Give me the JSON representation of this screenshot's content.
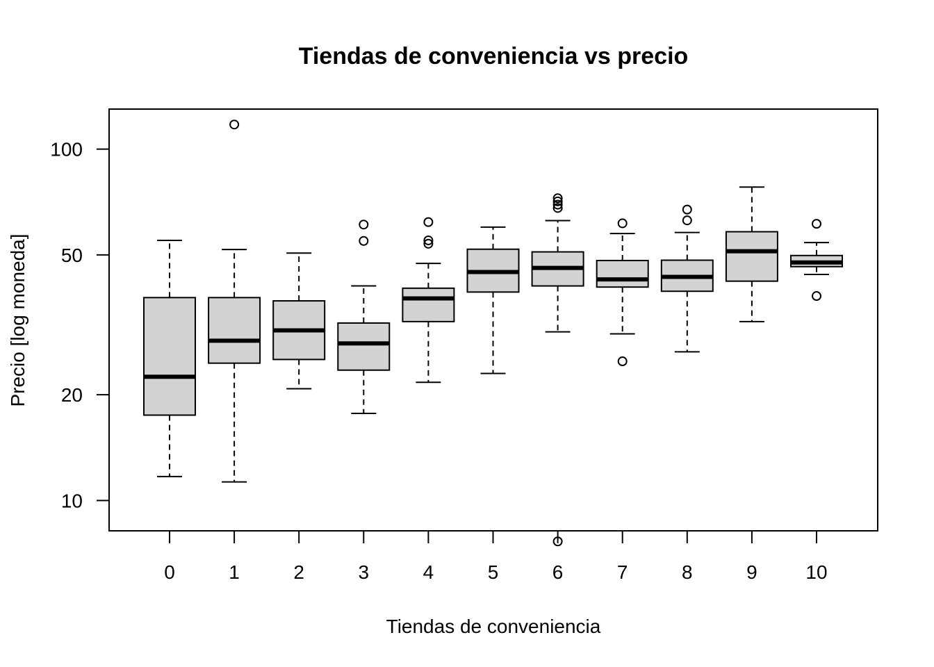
{
  "chart_data": {
    "type": "boxplot",
    "title": "Tiendas de conveniencia vs precio",
    "xlabel": "Tiendas de conveniencia",
    "ylabel": "Precio [log moneda]",
    "y_scale": "log",
    "ylim": [
      8.2,
      130
    ],
    "y_ticks": [
      10,
      20,
      50,
      100
    ],
    "categories": [
      "0",
      "1",
      "2",
      "3",
      "4",
      "5",
      "6",
      "7",
      "8",
      "9",
      "10"
    ],
    "box_fill_color": "#d3d3d3",
    "boxes": [
      {
        "category": "0",
        "whisker_low": 11.7,
        "q1": 17.5,
        "median": 22.5,
        "q3": 37.8,
        "whisker_high": 55.0,
        "outliers": []
      },
      {
        "category": "1",
        "whisker_low": 11.3,
        "q1": 24.6,
        "median": 28.5,
        "q3": 37.8,
        "whisker_high": 51.8,
        "outliers": [
          117.5
        ]
      },
      {
        "category": "2",
        "whisker_low": 20.8,
        "q1": 25.2,
        "median": 30.5,
        "q3": 37.0,
        "whisker_high": 50.6,
        "outliers": []
      },
      {
        "category": "3",
        "whisker_low": 17.7,
        "q1": 23.5,
        "median": 28.0,
        "q3": 32.0,
        "whisker_high": 40.8,
        "outliers": [
          54.8,
          61.0
        ]
      },
      {
        "category": "4",
        "whisker_low": 21.7,
        "q1": 32.3,
        "median": 37.6,
        "q3": 40.2,
        "whisker_high": 47.3,
        "outliers": [
          53.8,
          55.0,
          62.0
        ]
      },
      {
        "category": "5",
        "whisker_low": 23.0,
        "q1": 39.2,
        "median": 44.7,
        "q3": 51.9,
        "whisker_high": 60.0,
        "outliers": []
      },
      {
        "category": "6",
        "whisker_low": 30.2,
        "q1": 40.8,
        "median": 45.9,
        "q3": 51.0,
        "whisker_high": 62.6,
        "outliers": [
          7.65,
          68.0,
          69.5,
          71.0,
          72.5
        ]
      },
      {
        "category": "7",
        "whisker_low": 29.8,
        "q1": 40.5,
        "median": 42.6,
        "q3": 48.2,
        "whisker_high": 57.5,
        "outliers": [
          24.9,
          61.5
        ]
      },
      {
        "category": "8",
        "whisker_low": 26.5,
        "q1": 39.4,
        "median": 43.3,
        "q3": 48.3,
        "whisker_high": 57.9,
        "outliers": [
          62.7,
          67.3
        ]
      },
      {
        "category": "9",
        "whisker_low": 32.3,
        "q1": 42.1,
        "median": 51.2,
        "q3": 58.2,
        "whisker_high": 78.0,
        "outliers": []
      },
      {
        "category": "10",
        "whisker_low": 44.0,
        "q1": 46.3,
        "median": 47.6,
        "q3": 49.8,
        "whisker_high": 54.2,
        "outliers": [
          38.2,
          61.3
        ]
      }
    ]
  }
}
